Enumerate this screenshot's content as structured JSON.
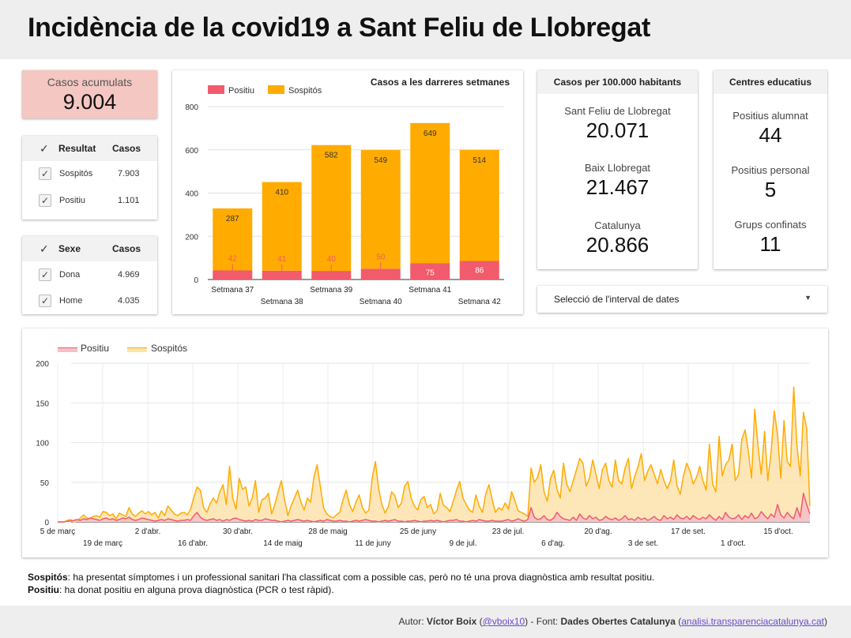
{
  "header": {
    "title": "Incidència de la covid19 a Sant Feliu de Llobregat"
  },
  "kpi_total": {
    "label": "Casos acumulats",
    "value": "9.004"
  },
  "table_resultat": {
    "col1": "Resultat",
    "col2": "Casos",
    "rows": [
      {
        "name": "Sospitós",
        "value": "7.903"
      },
      {
        "name": "Positiu",
        "value": "1.101"
      }
    ]
  },
  "table_sexe": {
    "col1": "Sexe",
    "col2": "Casos",
    "rows": [
      {
        "name": "Dona",
        "value": "4.969"
      },
      {
        "name": "Home",
        "value": "4.035"
      }
    ]
  },
  "per100k": {
    "title": "Casos per 100.000 habitants",
    "items": [
      {
        "label": "Sant Feliu de Llobregat",
        "value": "20.071"
      },
      {
        "label": "Baix Llobregat",
        "value": "21.467"
      },
      {
        "label": "Catalunya",
        "value": "20.866"
      }
    ]
  },
  "schools": {
    "title": "Centres educatius",
    "items": [
      {
        "label": "Positius alumnat",
        "value": "44"
      },
      {
        "label": "Positius personal",
        "value": "5"
      },
      {
        "label": "Grups confinats",
        "value": "11"
      }
    ]
  },
  "date_selector": {
    "label": "Selecció de l'interval de dates",
    "arrow": "▼"
  },
  "notes": {
    "sospitos_term": "Sospitós",
    "sospitos_text": ": ha presentat símptomes i un professional sanitari l'ha classificat com a possible cas, però no té una prova diagnòstica amb resultat positiu.",
    "positiu_term": "Positiu",
    "positiu_text": ": ha donat positiu en alguna prova diagnòstica (PCR o test ràpid)."
  },
  "footer": {
    "autor_label": "Autor: ",
    "autor_name": "Víctor Boix",
    "open_paren": " (",
    "handle": "@vboix10",
    "sep": ")  -  Font: ",
    "font_name": "Dades Obertes Catalunya",
    "open_paren2": " (",
    "url": "analisi.transparenciacatalunya.cat",
    "close_paren": ")"
  },
  "colors": {
    "positiu": "#f15b6c",
    "sospitos": "#ffab00",
    "positiu_fill": "#f6c1c7",
    "sospitos_fill": "#fde3ad"
  },
  "chart_data": [
    {
      "type": "bar",
      "title": "Casos a les darreres setmanes",
      "categories": [
        "Setmana 37",
        "Setmana 38",
        "Setmana 39",
        "Setmana 40",
        "Setmana 41",
        "Setmana 42"
      ],
      "series": [
        {
          "name": "Positiu",
          "values": [
            42,
            41,
            40,
            50,
            75,
            86
          ]
        },
        {
          "name": "Sospitós",
          "values": [
            287,
            410,
            582,
            549,
            649,
            514
          ]
        }
      ],
      "stacked": true,
      "ylim": [
        0,
        800
      ],
      "yticks": [
        0,
        200,
        400,
        600,
        800
      ],
      "legend": "top-left"
    },
    {
      "type": "area",
      "title": "",
      "xlabels": [
        "5 de març",
        "19 de març",
        "2 d'abr.",
        "16 d'abr.",
        "30 d'abr.",
        "14 de maig",
        "28 de maig",
        "11 de juny",
        "25 de juny",
        "9 de jul.",
        "23 de jul.",
        "6 d'ag.",
        "20 d'ag.",
        "3 de set.",
        "17 de set.",
        "1 d'oct.",
        "15 d'oct."
      ],
      "ylim": [
        0,
        200
      ],
      "yticks": [
        0,
        50,
        100,
        150,
        200
      ],
      "legend": "top-left",
      "series": [
        {
          "name": "Positiu",
          "values": [
            0,
            0,
            0,
            1,
            1,
            2,
            3,
            2,
            4,
            3,
            5,
            4,
            3,
            2,
            4,
            5,
            3,
            4,
            2,
            3,
            5,
            4,
            6,
            3,
            2,
            3,
            5,
            4,
            3,
            2,
            1,
            2,
            3,
            2,
            4,
            3,
            2,
            1,
            2,
            2,
            3,
            2,
            8,
            12,
            6,
            3,
            2,
            3,
            4,
            2,
            3,
            1,
            3,
            2,
            4,
            5,
            3,
            2,
            1,
            2,
            1,
            3,
            2,
            2,
            4,
            3,
            2,
            2,
            1,
            0,
            1,
            2,
            1,
            2,
            3,
            2,
            1,
            2,
            1,
            0,
            1,
            2,
            1,
            3,
            2,
            1,
            1,
            2,
            1,
            1,
            0,
            1,
            2,
            1,
            2,
            3,
            2,
            1,
            1,
            0,
            1,
            2,
            1,
            2,
            3,
            1,
            1,
            0,
            1,
            1,
            2,
            1,
            0,
            1,
            1,
            2,
            1,
            2,
            1,
            0,
            1,
            2,
            2,
            3,
            1,
            1,
            0,
            1,
            2,
            1,
            3,
            2,
            1,
            1,
            2,
            1,
            1,
            1,
            2,
            3,
            1,
            2,
            4,
            2,
            1,
            3,
            18,
            6,
            3,
            4,
            8,
            3,
            2,
            5,
            12,
            7,
            4,
            3,
            2,
            6,
            2,
            10,
            5,
            3,
            8,
            4,
            6,
            2,
            3,
            7,
            4,
            3,
            5,
            2,
            4,
            8,
            3,
            4,
            2,
            6,
            3,
            5,
            2,
            4,
            7,
            3,
            2,
            8,
            4,
            6,
            3,
            9,
            5,
            4,
            7,
            3,
            8,
            5,
            3,
            6,
            4,
            9,
            5,
            2,
            7,
            3,
            12,
            6,
            4,
            5,
            9,
            3,
            8,
            5,
            11,
            4,
            6,
            13,
            8,
            4,
            10,
            6,
            22,
            9,
            5,
            12,
            7,
            4,
            18,
            6,
            36,
            22,
            10
          ]
        },
        {
          "name": "Sospitós",
          "values": [
            0,
            0,
            0,
            2,
            3,
            0,
            1,
            5,
            9,
            5,
            4,
            7,
            8,
            6,
            13,
            12,
            8,
            10,
            4,
            11,
            9,
            7,
            18,
            10,
            7,
            11,
            14,
            10,
            13,
            9,
            12,
            5,
            14,
            8,
            20,
            15,
            10,
            8,
            11,
            12,
            9,
            16,
            31,
            44,
            40,
            18,
            12,
            23,
            30,
            24,
            38,
            47,
            22,
            70,
            30,
            16,
            55,
            41,
            44,
            20,
            30,
            52,
            12,
            28,
            30,
            36,
            10,
            22,
            38,
            52,
            28,
            8,
            20,
            30,
            40,
            25,
            15,
            30,
            25,
            56,
            72,
            45,
            18,
            10,
            7,
            5,
            9,
            12,
            28,
            40,
            22,
            13,
            25,
            34,
            18,
            11,
            15,
            55,
            76,
            42,
            22,
            11,
            20,
            38,
            33,
            18,
            24,
            45,
            51,
            30,
            20,
            15,
            28,
            32,
            18,
            22,
            10,
            14,
            36,
            21,
            18,
            13,
            26,
            40,
            51,
            30,
            22,
            15,
            12,
            34,
            20,
            12,
            35,
            47,
            28,
            12,
            18,
            15,
            24,
            16,
            38,
            27,
            14,
            12,
            10,
            7,
            68,
            50,
            56,
            72,
            38,
            26,
            55,
            65,
            41,
            30,
            74,
            48,
            38,
            52,
            66,
            80,
            74,
            45,
            55,
            78,
            60,
            42,
            66,
            74,
            52,
            44,
            78,
            52,
            48,
            68,
            80,
            42,
            58,
            70,
            86,
            52,
            64,
            72,
            60,
            48,
            66,
            52,
            42,
            52,
            78,
            46,
            35,
            58,
            74,
            64,
            48,
            56,
            70,
            52,
            40,
            98,
            48,
            38,
            108,
            58,
            72,
            78,
            98,
            52,
            60,
            104,
            116,
            90,
            55,
            142,
            96,
            60,
            114,
            52,
            88,
            140,
            110,
            55,
            128,
            76,
            70,
            170,
            96,
            58,
            138,
            118,
            20
          ]
        }
      ]
    }
  ]
}
